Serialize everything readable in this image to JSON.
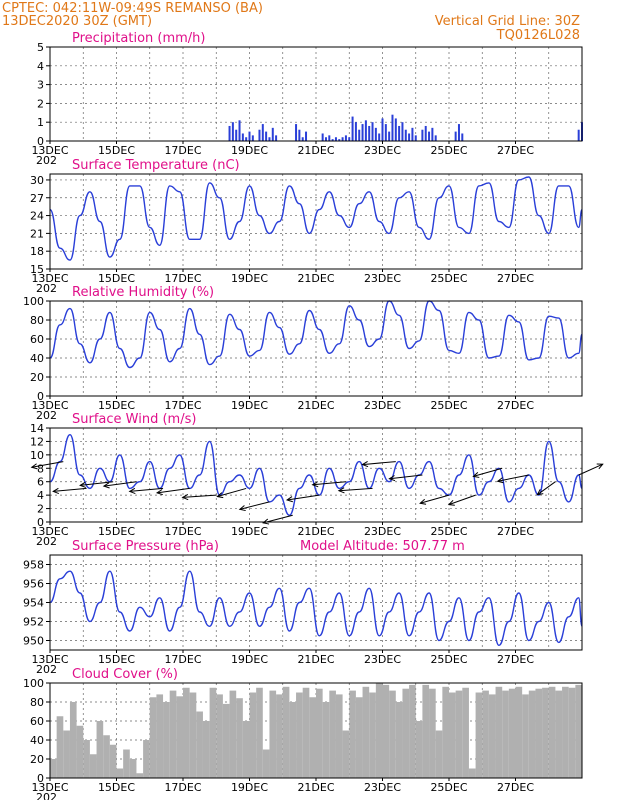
{
  "header": {
    "line1": "CPTEC:   042:11W-09:49S   REMANSO (BA)",
    "line2_left": "13DEC2020 30Z (GMT)",
    "line2_right": "Vertical Grid Line: 30Z",
    "line3_right": "TQ0126L028"
  },
  "x_axis": {
    "ticks": [
      "13DEC",
      "15DEC",
      "17DEC",
      "19DEC",
      "21DEC",
      "23DEC",
      "25DEC",
      "27DEC"
    ],
    "year_stub": "202"
  },
  "colors": {
    "line": "#2a3fd8",
    "bar": "#2a3fd8",
    "cloud": "#b0b0b0",
    "header": "#e07818",
    "title": "#e0108a"
  },
  "chart_data": [
    {
      "type": "bar",
      "title": "Precipitation (mm/h)",
      "ylim": [
        0,
        5
      ],
      "yticks": [
        0,
        1,
        2,
        3,
        4,
        5
      ],
      "x": [
        5.4,
        5.5,
        5.6,
        5.7,
        5.8,
        5.9,
        6.0,
        6.1,
        6.3,
        6.4,
        6.5,
        6.6,
        6.7,
        6.8,
        7.4,
        7.5,
        7.6,
        7.7,
        8.2,
        8.3,
        8.4,
        8.5,
        8.6,
        8.7,
        8.8,
        8.9,
        9.0,
        9.1,
        9.2,
        9.3,
        9.4,
        9.5,
        9.6,
        9.7,
        9.8,
        9.9,
        10.0,
        10.1,
        10.2,
        10.3,
        10.4,
        10.5,
        10.6,
        10.7,
        10.8,
        10.9,
        11.0,
        11.2,
        11.3,
        11.4,
        11.5,
        11.6,
        12.2,
        12.3,
        12.4,
        15.9,
        16.0
      ],
      "values": [
        0.8,
        1.0,
        0.6,
        1.1,
        0.4,
        0.2,
        0.5,
        0.3,
        0.6,
        0.9,
        0.5,
        0.2,
        0.7,
        0.3,
        0.9,
        0.6,
        0.2,
        0.5,
        0.4,
        0.2,
        0.3,
        0.1,
        0.2,
        0.1,
        0.2,
        0.3,
        0.2,
        1.3,
        1.0,
        0.6,
        0.9,
        1.1,
        0.8,
        1.0,
        0.7,
        0.4,
        1.2,
        0.9,
        0.5,
        1.4,
        1.2,
        0.8,
        1.0,
        0.6,
        0.4,
        0.7,
        0.3,
        0.6,
        0.8,
        0.5,
        0.7,
        0.3,
        0.5,
        0.9,
        0.4,
        0.6,
        1.0
      ]
    },
    {
      "type": "line",
      "title": "Surface Temperature (nC)",
      "ylim": [
        15,
        31
      ],
      "yticks": [
        15,
        18,
        21,
        24,
        27,
        30
      ],
      "series": [
        {
          "x": [
            0,
            0.3,
            0.6,
            0.9,
            1.2,
            1.5,
            1.8,
            2.1,
            2.4,
            2.7,
            3.0,
            3.3,
            3.6,
            3.9,
            4.2,
            4.5,
            4.8,
            5.1,
            5.4,
            5.7,
            6.0,
            6.3,
            6.6,
            6.9,
            7.2,
            7.5,
            7.8,
            8.1,
            8.4,
            8.7,
            9.0,
            9.3,
            9.6,
            9.9,
            10.2,
            10.5,
            10.8,
            11.1,
            11.4,
            11.7,
            12.0,
            12.3,
            12.6,
            12.9,
            13.2,
            13.5,
            13.8,
            14.1,
            14.4,
            14.7,
            15.0,
            15.3,
            15.6,
            15.9,
            16.0
          ],
          "values": [
            25,
            18.5,
            16.5,
            24,
            28,
            23,
            17,
            20,
            29,
            29,
            22,
            19,
            29,
            28,
            20,
            20,
            29.5,
            27,
            20,
            23,
            29,
            24,
            21,
            23,
            29,
            26,
            21,
            25,
            28,
            24,
            22,
            26,
            28,
            23,
            21,
            27,
            28,
            22,
            20,
            27,
            29,
            22,
            21,
            29,
            29.5,
            23,
            22,
            30,
            30.5,
            24,
            21,
            29,
            29,
            22,
            25
          ]
        }
      ]
    },
    {
      "type": "line",
      "title": "Relative Humidity (%)",
      "ylim": [
        0,
        100
      ],
      "yticks": [
        0,
        20,
        40,
        60,
        80,
        100
      ],
      "series": [
        {
          "x": [
            0,
            0.3,
            0.6,
            0.9,
            1.2,
            1.5,
            1.8,
            2.1,
            2.4,
            2.7,
            3.0,
            3.3,
            3.6,
            3.9,
            4.2,
            4.5,
            4.8,
            5.1,
            5.4,
            5.7,
            6.0,
            6.3,
            6.6,
            6.9,
            7.2,
            7.5,
            7.8,
            8.1,
            8.4,
            8.7,
            9.0,
            9.3,
            9.6,
            9.9,
            10.2,
            10.5,
            10.8,
            11.1,
            11.4,
            11.7,
            12.0,
            12.3,
            12.6,
            12.9,
            13.2,
            13.5,
            13.8,
            14.1,
            14.4,
            14.7,
            15.0,
            15.3,
            15.6,
            15.9,
            16.0
          ],
          "values": [
            40,
            75,
            92,
            55,
            35,
            60,
            88,
            50,
            30,
            40,
            88,
            70,
            36,
            50,
            92,
            65,
            33,
            42,
            86,
            70,
            42,
            48,
            88,
            72,
            44,
            55,
            90,
            70,
            45,
            55,
            95,
            80,
            52,
            60,
            100,
            85,
            50,
            58,
            100,
            90,
            48,
            45,
            88,
            80,
            40,
            42,
            85,
            78,
            38,
            40,
            84,
            82,
            40,
            45,
            65
          ]
        }
      ]
    },
    {
      "type": "line",
      "title": "Surface Wind (m/s)",
      "ylim": [
        0,
        14
      ],
      "yticks": [
        0,
        2,
        4,
        6,
        8,
        10,
        12,
        14
      ],
      "series": [
        {
          "x": [
            0,
            0.3,
            0.6,
            0.9,
            1.2,
            1.5,
            1.8,
            2.1,
            2.4,
            2.7,
            3.0,
            3.3,
            3.6,
            3.9,
            4.2,
            4.5,
            4.8,
            5.1,
            5.4,
            5.7,
            6.0,
            6.3,
            6.6,
            6.9,
            7.2,
            7.5,
            7.8,
            8.1,
            8.4,
            8.7,
            9.0,
            9.3,
            9.6,
            9.9,
            10.2,
            10.5,
            10.8,
            11.1,
            11.4,
            11.7,
            12.0,
            12.3,
            12.6,
            12.9,
            13.2,
            13.5,
            13.8,
            14.1,
            14.4,
            14.7,
            15.0,
            15.3,
            15.6,
            15.9,
            16.0
          ],
          "values": [
            6,
            9,
            13,
            7,
            5,
            8,
            6,
            10,
            5,
            6,
            9,
            5,
            8,
            10,
            5,
            7,
            12,
            4,
            6,
            7,
            5,
            8,
            3,
            4,
            1,
            5,
            7,
            4,
            8,
            5,
            6,
            9,
            5,
            8,
            6,
            9,
            5,
            7,
            9,
            5,
            4,
            7,
            10,
            4,
            6,
            8,
            3,
            5,
            7,
            4,
            12,
            6,
            3,
            7,
            5
          ]
        }
      ],
      "wind_barbs": [
        {
          "x": 0.4,
          "dx": 1,
          "dy": 0.4
        },
        {
          "x": 1.1,
          "dx": 1,
          "dy": 0.2
        },
        {
          "x": 1.9,
          "dx": 1,
          "dy": 0.25
        },
        {
          "x": 2.6,
          "dx": 1,
          "dy": 0.3
        },
        {
          "x": 3.4,
          "dx": 1,
          "dy": 0.2
        },
        {
          "x": 4.2,
          "dx": 1,
          "dy": 0.3
        },
        {
          "x": 5.0,
          "dx": 1,
          "dy": 0.15
        },
        {
          "x": 5.9,
          "dx": 0.8,
          "dy": 0.5
        },
        {
          "x": 6.6,
          "dx": 0.8,
          "dy": 0.45
        },
        {
          "x": 7.3,
          "dx": 0.7,
          "dy": 0.4
        },
        {
          "x": 8.1,
          "dx": 0.9,
          "dy": 0.3
        },
        {
          "x": 8.9,
          "dx": 1,
          "dy": 0.2
        },
        {
          "x": 9.7,
          "dx": 1,
          "dy": 0.15
        },
        {
          "x": 10.4,
          "dx": 1,
          "dy": 0.2
        },
        {
          "x": 11.2,
          "dx": 1,
          "dy": 0.25
        },
        {
          "x": 12.0,
          "dx": 0.8,
          "dy": 0.5
        },
        {
          "x": 12.8,
          "dx": 0.7,
          "dy": 0.55
        },
        {
          "x": 13.6,
          "dx": 0.8,
          "dy": 0.5
        },
        {
          "x": 14.4,
          "dx": 0.9,
          "dy": 0.4
        },
        {
          "x": 15.2,
          "dx": 0.5,
          "dy": 0.8
        },
        {
          "x": 15.9,
          "dx": -0.5,
          "dy": -0.5
        }
      ]
    },
    {
      "type": "line",
      "title": "Surface Pressure (hPa)",
      "subtitle": "Model Altitude: 507.77  m",
      "ylim": [
        949,
        959
      ],
      "yticks": [
        950,
        952,
        954,
        956,
        958
      ],
      "series": [
        {
          "x": [
            0,
            0.3,
            0.6,
            0.9,
            1.2,
            1.5,
            1.8,
            2.1,
            2.4,
            2.7,
            3.0,
            3.3,
            3.6,
            3.9,
            4.2,
            4.5,
            4.8,
            5.1,
            5.4,
            5.7,
            6.0,
            6.3,
            6.6,
            6.9,
            7.2,
            7.5,
            7.8,
            8.1,
            8.4,
            8.7,
            9.0,
            9.3,
            9.6,
            9.9,
            10.2,
            10.5,
            10.8,
            11.1,
            11.4,
            11.7,
            12.0,
            12.3,
            12.6,
            12.9,
            13.2,
            13.5,
            13.8,
            14.1,
            14.4,
            14.7,
            15.0,
            15.3,
            15.6,
            15.9,
            16.0
          ],
          "values": [
            954,
            956.5,
            957.3,
            955,
            952,
            954,
            957.3,
            953,
            951,
            953.5,
            952.5,
            954.5,
            951,
            953.5,
            957.3,
            953,
            951.5,
            954.5,
            951.5,
            953,
            955,
            951.5,
            953.5,
            955.5,
            951,
            954,
            955.5,
            950.5,
            953,
            955,
            950.5,
            953,
            955.5,
            950.5,
            953,
            955,
            950.5,
            953,
            955,
            950,
            952,
            954.5,
            950,
            953,
            954.5,
            949.5,
            952,
            955,
            950,
            952,
            954,
            949.8,
            952.5,
            954.5,
            951.5
          ]
        }
      ]
    },
    {
      "type": "bar",
      "title": "Cloud Cover (%)",
      "ylim": [
        0,
        100
      ],
      "yticks": [
        0,
        20,
        40,
        60,
        80,
        100
      ],
      "x": [
        0,
        0.2,
        0.4,
        0.6,
        0.8,
        1.0,
        1.2,
        1.4,
        1.6,
        1.8,
        2.0,
        2.2,
        2.4,
        2.6,
        2.8,
        3.0,
        3.2,
        3.4,
        3.6,
        3.8,
        4.0,
        4.2,
        4.4,
        4.6,
        4.8,
        5.0,
        5.2,
        5.4,
        5.6,
        5.8,
        6.0,
        6.2,
        6.4,
        6.6,
        6.8,
        7.0,
        7.2,
        7.4,
        7.6,
        7.8,
        8.0,
        8.2,
        8.4,
        8.6,
        8.8,
        9.0,
        9.2,
        9.4,
        9.6,
        9.8,
        10.0,
        10.2,
        10.4,
        10.6,
        10.8,
        11.0,
        11.2,
        11.4,
        11.6,
        11.8,
        12.0,
        12.2,
        12.4,
        12.6,
        12.8,
        13.0,
        13.2,
        13.4,
        13.6,
        13.8,
        14.0,
        14.2,
        14.4,
        14.6,
        14.8,
        15.0,
        15.2,
        15.4,
        15.6,
        15.8
      ],
      "values": [
        20,
        65,
        50,
        80,
        55,
        40,
        25,
        60,
        45,
        35,
        10,
        30,
        20,
        5,
        40,
        85,
        88,
        80,
        92,
        86,
        95,
        90,
        70,
        60,
        95,
        88,
        78,
        92,
        84,
        60,
        90,
        95,
        30,
        92,
        88,
        96,
        80,
        90,
        95,
        85,
        94,
        80,
        92,
        88,
        50,
        92,
        85,
        96,
        90,
        100,
        98,
        92,
        80,
        94,
        98,
        60,
        98,
        94,
        50,
        96,
        90,
        92,
        95,
        10,
        90,
        92,
        88,
        96,
        92,
        94,
        96,
        88,
        92,
        94,
        95,
        96,
        92,
        96,
        95,
        98
      ]
    }
  ]
}
